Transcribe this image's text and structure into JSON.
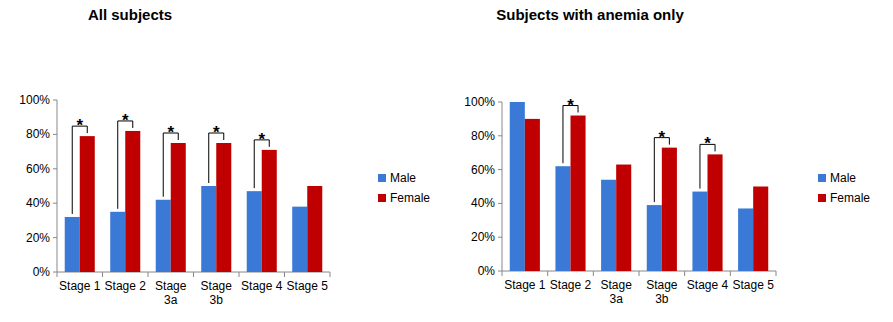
{
  "chart_data": [
    {
      "type": "bar",
      "title": "All subjects",
      "categories": [
        "Stage 1",
        "Stage 2",
        "Stage 3a",
        "Stage 3b",
        "Stage 4",
        "Stage 5"
      ],
      "series": [
        {
          "name": "Male",
          "color": "#3a7ad6",
          "values": [
            32,
            35,
            42,
            50,
            47,
            38
          ]
        },
        {
          "name": "Female",
          "color": "#c00000",
          "values": [
            79,
            82,
            75,
            75,
            71,
            50
          ]
        }
      ],
      "ylim": [
        0,
        100
      ],
      "yticks": [
        {
          "value": 0,
          "label": "0%"
        },
        {
          "value": 20,
          "label": "20%"
        },
        {
          "value": 40,
          "label": "40%"
        },
        {
          "value": 60,
          "label": "60%"
        },
        {
          "value": 80,
          "label": "80%"
        },
        {
          "value": 100,
          "label": "100%"
        }
      ],
      "grid": false,
      "legend": "right",
      "annotations": [
        {
          "text": "*",
          "category": "Stage 1"
        },
        {
          "text": "*",
          "category": "Stage 2"
        },
        {
          "text": "*",
          "category": "Stage 3a"
        },
        {
          "text": "*",
          "category": "Stage 3b"
        },
        {
          "text": "*",
          "category": "Stage 4"
        }
      ]
    },
    {
      "type": "bar",
      "title": "Subjects with anemia only",
      "categories": [
        "Stage 1",
        "Stage 2",
        "Stage 3a",
        "Stage 3b",
        "Stage 4",
        "Stage 5"
      ],
      "series": [
        {
          "name": "Male",
          "color": "#3a7ad6",
          "values": [
            100,
            62,
            54,
            39,
            47,
            37
          ]
        },
        {
          "name": "Female",
          "color": "#c00000",
          "values": [
            90,
            92,
            63,
            73,
            69,
            50
          ]
        }
      ],
      "ylim": [
        0,
        100
      ],
      "yticks": [
        {
          "value": 0,
          "label": "0%"
        },
        {
          "value": 20,
          "label": "20%"
        },
        {
          "value": 40,
          "label": "40%"
        },
        {
          "value": 60,
          "label": "60%"
        },
        {
          "value": 80,
          "label": "80%"
        },
        {
          "value": 100,
          "label": "100%"
        }
      ],
      "grid": false,
      "legend": "right",
      "annotations": [
        {
          "text": "*",
          "category": "Stage 2"
        },
        {
          "text": "*",
          "category": "Stage 3b"
        },
        {
          "text": "*",
          "category": "Stage 4"
        }
      ]
    }
  ]
}
